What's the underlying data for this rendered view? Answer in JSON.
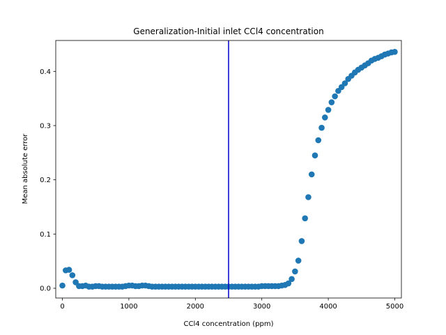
{
  "chart_data": {
    "type": "scatter",
    "title": "Generalization-Initial inlet CCl4 concentration",
    "xlabel": "CCl4 concentration (ppm)",
    "ylabel": "Mean absolute error",
    "xlim": [
      -100,
      5100
    ],
    "ylim": [
      -0.018,
      0.457
    ],
    "xticks": [
      0,
      1000,
      2000,
      3000,
      4000,
      5000
    ],
    "xtick_labels": [
      "0",
      "1000",
      "2000",
      "3000",
      "4000",
      "5000"
    ],
    "yticks": [
      0.0,
      0.1,
      0.2,
      0.3,
      0.4
    ],
    "ytick_labels": [
      "0.0",
      "0.1",
      "0.2",
      "0.3",
      "0.4"
    ],
    "grid": false,
    "marker_color": "#1f77b4",
    "vline": {
      "x": 2500,
      "color": "#0000cc"
    },
    "series": [
      {
        "x": [
          0,
          50,
          100,
          150,
          200,
          250,
          300,
          350,
          400,
          450,
          500,
          550,
          600,
          650,
          700,
          750,
          800,
          850,
          900,
          950,
          1000,
          1050,
          1100,
          1150,
          1200,
          1250,
          1300,
          1350,
          1400,
          1450,
          1500,
          1550,
          1600,
          1650,
          1700,
          1750,
          1800,
          1850,
          1900,
          1950,
          2000,
          2050,
          2100,
          2150,
          2200,
          2250,
          2300,
          2350,
          2400,
          2450,
          2500,
          2550,
          2600,
          2650,
          2700,
          2750,
          2800,
          2850,
          2900,
          2950,
          3000,
          3050,
          3100,
          3150,
          3200,
          3250,
          3300,
          3350,
          3400,
          3450,
          3500,
          3550,
          3600,
          3650,
          3700,
          3750,
          3800,
          3850,
          3900,
          3950,
          4000,
          4050,
          4100,
          4150,
          4200,
          4250,
          4300,
          4350,
          4400,
          4450,
          4500,
          4550,
          4600,
          4650,
          4700,
          4750,
          4800,
          4850,
          4900,
          4950,
          5000
        ],
        "y": [
          0.005,
          0.033,
          0.034,
          0.024,
          0.011,
          0.004,
          0.004,
          0.005,
          0.003,
          0.003,
          0.004,
          0.004,
          0.003,
          0.003,
          0.003,
          0.003,
          0.003,
          0.003,
          0.003,
          0.004,
          0.005,
          0.005,
          0.004,
          0.004,
          0.005,
          0.005,
          0.004,
          0.003,
          0.003,
          0.003,
          0.003,
          0.003,
          0.003,
          0.003,
          0.003,
          0.003,
          0.003,
          0.003,
          0.003,
          0.003,
          0.003,
          0.003,
          0.003,
          0.003,
          0.003,
          0.003,
          0.003,
          0.003,
          0.003,
          0.003,
          0.003,
          0.003,
          0.003,
          0.003,
          0.003,
          0.003,
          0.003,
          0.003,
          0.003,
          0.003,
          0.004,
          0.004,
          0.004,
          0.004,
          0.004,
          0.004,
          0.005,
          0.006,
          0.009,
          0.017,
          0.031,
          0.051,
          0.087,
          0.129,
          0.168,
          0.21,
          0.245,
          0.273,
          0.296,
          0.315,
          0.329,
          0.343,
          0.354,
          0.364,
          0.371,
          0.378,
          0.386,
          0.392,
          0.398,
          0.403,
          0.407,
          0.411,
          0.415,
          0.42,
          0.423,
          0.425,
          0.428,
          0.431,
          0.433,
          0.435,
          0.436
        ]
      }
    ]
  }
}
